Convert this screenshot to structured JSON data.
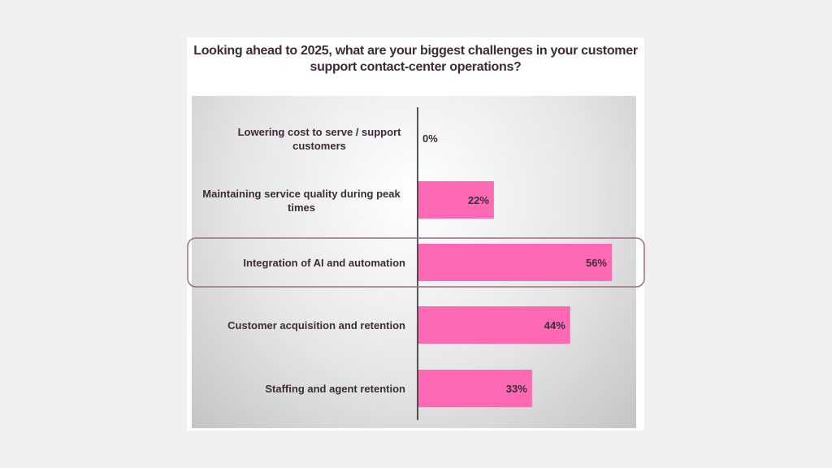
{
  "chart_data": {
    "type": "bar",
    "orientation": "horizontal",
    "title": "Looking ahead to 2025, what are your biggest challenges in your customer support contact-center operations?",
    "categories": [
      [
        "Lowering cost to serve / support",
        "customers"
      ],
      [
        "Maintaining service quality during peak",
        "times"
      ],
      [
        "Integration of AI and automation"
      ],
      [
        "Customer acquisition and retention"
      ],
      [
        "Staffing and agent retention"
      ]
    ],
    "values": [
      0,
      22,
      56,
      44,
      33
    ],
    "data_labels": [
      "0%",
      "22%",
      "56%",
      "44%",
      "33%"
    ],
    "highlighted_category": "Integration of AI and automation",
    "grid": false,
    "legend": "none",
    "colors": {
      "bar": "#ff69b4",
      "text": "#3d2b3a",
      "highlight_border": "#9b6b8e"
    }
  }
}
